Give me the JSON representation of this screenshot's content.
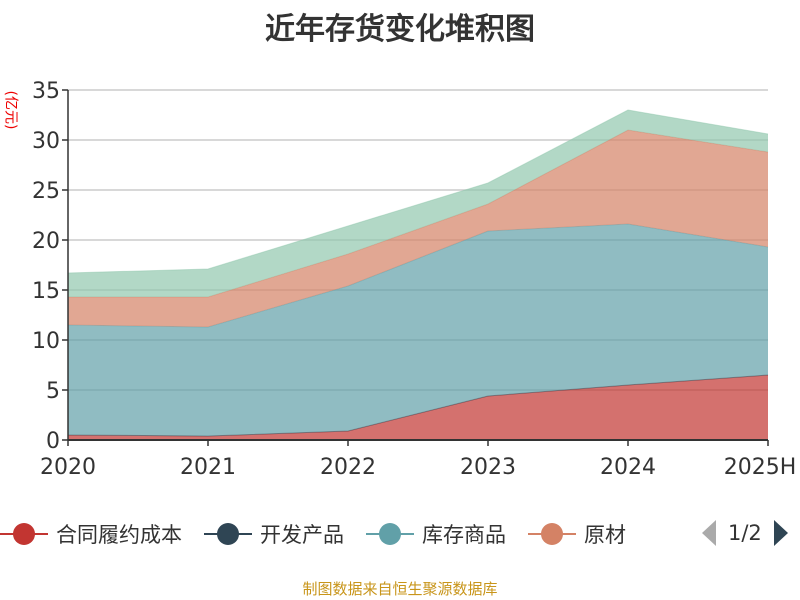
{
  "chart_data": {
    "type": "area",
    "stacked": true,
    "title": "近年存货变化堆积图",
    "ylabel": "(亿元)",
    "categories": [
      "2020",
      "2021",
      "2022",
      "2023",
      "2024",
      "2025H"
    ],
    "ylim": [
      0,
      35
    ],
    "yticks": [
      0,
      5,
      10,
      15,
      20,
      25,
      30,
      35
    ],
    "grid": true,
    "legend_position": "bottom",
    "series": [
      {
        "name": "合同履约成本",
        "color": "#c23531",
        "values": [
          0.5,
          0.4,
          0.9,
          4.4,
          5.5,
          6.5
        ]
      },
      {
        "name": "开发产品",
        "color": "#2f4554",
        "values": [
          0,
          0,
          0,
          0,
          0,
          0
        ]
      },
      {
        "name": "库存商品",
        "color": "#61a0a8",
        "values": [
          11.0,
          10.9,
          14.5,
          16.5,
          16.1,
          12.8
        ]
      },
      {
        "name": "原材料",
        "color": "#d48265",
        "values": [
          2.8,
          3.0,
          3.2,
          2.7,
          9.4,
          9.5
        ]
      },
      {
        "color": "#91c7ae",
        "values": [
          2.4,
          2.8,
          2.8,
          2.1,
          2.0,
          1.8
        ]
      }
    ]
  },
  "legend": {
    "page": "1/2"
  },
  "footer": "制图数据来自恒生聚源数据库"
}
